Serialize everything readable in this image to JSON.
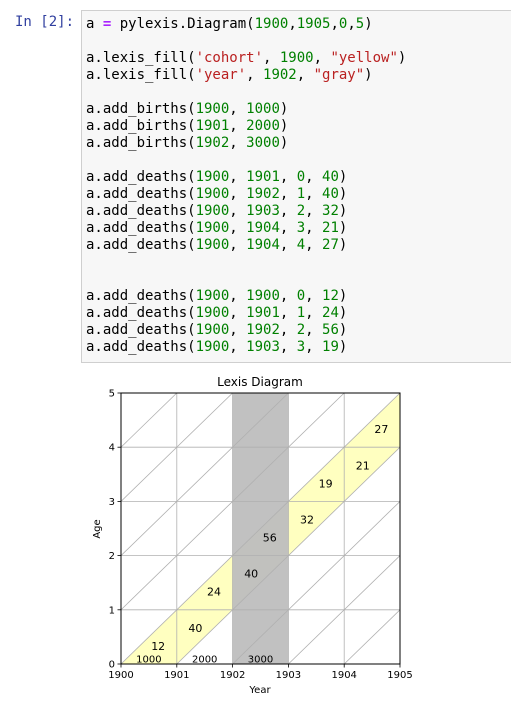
{
  "cell": {
    "prompt": "In [2]:",
    "lines": [
      "a = pylexis.Diagram(1900,1905,0,5)",
      "",
      "a.lexis_fill('cohort', 1900, \"yellow\")",
      "a.lexis_fill('year', 1902, \"gray\")",
      "",
      "a.add_births(1900, 1000)",
      "a.add_births(1901, 2000)",
      "a.add_births(1902, 3000)",
      "",
      "a.add_deaths(1900, 1901, 0, 40)",
      "a.add_deaths(1900, 1902, 1, 40)",
      "a.add_deaths(1900, 1903, 2, 32)",
      "a.add_deaths(1900, 1904, 3, 21)",
      "a.add_deaths(1900, 1904, 4, 27)",
      "",
      "",
      "a.add_deaths(1900, 1900, 0, 12)",
      "a.add_deaths(1900, 1901, 1, 24)",
      "a.add_deaths(1900, 1902, 2, 56)",
      "a.add_deaths(1900, 1903, 3, 19)"
    ]
  },
  "chart_data": {
    "type": "lexis",
    "title": "Lexis Diagram",
    "xlabel": "Year",
    "ylabel": "Age",
    "xlim": [
      1900,
      1905
    ],
    "ylim": [
      0,
      5
    ],
    "xticks": [
      "1900",
      "1901",
      "1902",
      "1903",
      "1904",
      "1905"
    ],
    "yticks": [
      "0",
      "1",
      "2",
      "3",
      "4",
      "5"
    ],
    "grid": true,
    "cohort_fill": {
      "cohort": 1900,
      "color": "#ffffc0"
    },
    "year_fill": {
      "year": 1902,
      "color": "#bebebe"
    },
    "births": [
      {
        "year": 1900,
        "value": "1000"
      },
      {
        "year": 1901,
        "value": "2000"
      },
      {
        "year": 1902,
        "value": "3000"
      }
    ],
    "deaths": [
      {
        "cohort": 1900,
        "year": 1901,
        "age": 0,
        "value": "40"
      },
      {
        "cohort": 1900,
        "year": 1902,
        "age": 1,
        "value": "40"
      },
      {
        "cohort": 1900,
        "year": 1903,
        "age": 2,
        "value": "32"
      },
      {
        "cohort": 1900,
        "year": 1904,
        "age": 3,
        "value": "21"
      },
      {
        "cohort": 1900,
        "year": 1904,
        "age": 4,
        "value": "27"
      },
      {
        "cohort": 1900,
        "year": 1900,
        "age": 0,
        "value": "12"
      },
      {
        "cohort": 1900,
        "year": 1901,
        "age": 1,
        "value": "24"
      },
      {
        "cohort": 1900,
        "year": 1902,
        "age": 2,
        "value": "56"
      },
      {
        "cohort": 1900,
        "year": 1903,
        "age": 3,
        "value": "19"
      }
    ]
  }
}
